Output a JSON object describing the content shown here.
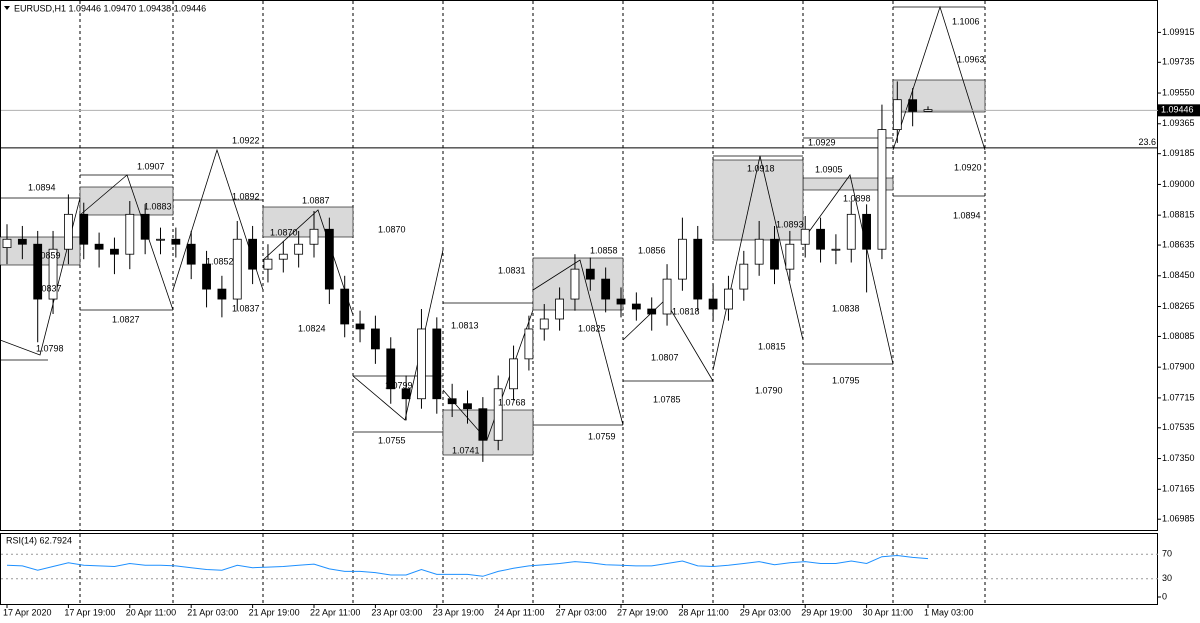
{
  "header": "EURUSD,H1  1.09446 1.09470 1.09438 1.09446",
  "chart_data": {
    "type": "candlestick",
    "categories": [
      "17 Apr 2020",
      null,
      null,
      null,
      "17 Apr 19:00",
      null,
      null,
      null,
      "20 Apr 11:00",
      null,
      null,
      null,
      "21 Apr 03:00",
      null,
      null,
      null,
      "21 Apr 19:00",
      null,
      null,
      null,
      "22 Apr 11:00",
      null,
      null,
      null,
      "23 Apr 03:00",
      null,
      null,
      null,
      "23 Apr 19:00",
      null,
      null,
      null,
      "24 Apr 11:00",
      null,
      null,
      null,
      "27 Apr 03:00",
      null,
      null,
      null,
      "27 Apr 19:00",
      null,
      null,
      null,
      "28 Apr 11:00",
      null,
      null,
      null,
      "29 Apr 03:00",
      null,
      null,
      null,
      "29 Apr 19:00",
      null,
      null,
      null,
      "30 Apr 11:00",
      null,
      null,
      null,
      "1 May 03:00"
    ],
    "open": [
      1.0862,
      1.0867,
      1.0864,
      1.0831,
      1.0861,
      1.0882,
      1.0864,
      1.0861,
      1.0858,
      1.0882,
      1.0867,
      1.0867,
      1.0864,
      1.0852,
      1.0837,
      1.0831,
      1.0867,
      1.0849,
      1.0855,
      1.0858,
      1.0864,
      1.0873,
      1.0837,
      1.0816,
      1.0813,
      1.0801,
      1.0777,
      1.0771,
      1.0813,
      1.0771,
      1.0768,
      1.0765,
      1.0746,
      1.0777,
      1.0795,
      1.0813,
      1.0819,
      1.0831,
      1.0849,
      1.0843,
      1.0831,
      1.0828,
      1.0825,
      1.0822,
      1.0843,
      1.0867,
      1.0831,
      1.0825,
      1.0837,
      1.0852,
      1.0867,
      1.0849,
      1.0864,
      1.0873,
      1.0861,
      1.0861,
      1.0882,
      1.0861,
      1.0933,
      1.0951,
      1.0944
    ],
    "high": [
      1.0876,
      1.0875,
      1.0872,
      1.0872,
      1.0894,
      1.0889,
      1.0871,
      1.0868,
      1.089,
      1.0888,
      1.0874,
      1.0874,
      1.0872,
      1.086,
      1.0845,
      1.0878,
      1.0875,
      1.0864,
      1.0866,
      1.0872,
      1.0884,
      1.088,
      1.0845,
      1.0824,
      1.0821,
      1.0808,
      1.0785,
      1.0825,
      1.082,
      1.078,
      1.0776,
      1.0772,
      1.0785,
      1.0803,
      1.0821,
      1.0828,
      1.0838,
      1.0858,
      1.0856,
      1.085,
      1.0838,
      1.0835,
      1.0832,
      1.0852,
      1.088,
      1.0875,
      1.084,
      1.0845,
      1.086,
      1.0878,
      1.0875,
      1.0872,
      1.0881,
      1.088,
      1.087,
      1.089,
      1.0888,
      1.0948,
      1.0962,
      1.0958,
      1.0947
    ],
    "low": [
      1.0852,
      1.0855,
      1.0805,
      1.0822,
      1.0852,
      1.0855,
      1.085,
      1.0846,
      1.0849,
      1.0858,
      1.0858,
      1.0856,
      1.0843,
      1.0826,
      1.082,
      1.0824,
      1.084,
      1.0841,
      1.0847,
      1.085,
      1.0856,
      1.0828,
      1.0808,
      1.0805,
      1.0792,
      1.0768,
      1.0758,
      1.0765,
      1.0762,
      1.076,
      1.0756,
      1.0733,
      1.074,
      1.077,
      1.0788,
      1.0806,
      1.0812,
      1.0824,
      1.0836,
      1.0823,
      1.082,
      1.0818,
      1.0812,
      1.0815,
      1.0836,
      1.0824,
      1.0818,
      1.0818,
      1.083,
      1.0845,
      1.084,
      1.0842,
      1.0856,
      1.0853,
      1.0852,
      1.0853,
      1.0835,
      1.0855,
      1.0925,
      1.0935,
      1.0944
    ],
    "close": [
      1.0867,
      1.0864,
      1.0831,
      1.0861,
      1.0882,
      1.0864,
      1.0861,
      1.0858,
      1.0882,
      1.0867,
      1.0867,
      1.0864,
      1.0852,
      1.0837,
      1.0831,
      1.0867,
      1.0849,
      1.0855,
      1.0858,
      1.0864,
      1.0873,
      1.0837,
      1.0816,
      1.0813,
      1.0801,
      1.0777,
      1.0771,
      1.0813,
      1.0771,
      1.0768,
      1.0765,
      1.0746,
      1.0777,
      1.0795,
      1.0813,
      1.0819,
      1.0831,
      1.0849,
      1.0843,
      1.0831,
      1.0828,
      1.0825,
      1.0822,
      1.0843,
      1.0867,
      1.0831,
      1.0825,
      1.0837,
      1.0852,
      1.0867,
      1.0849,
      1.0864,
      1.0873,
      1.0861,
      1.0861,
      1.0882,
      1.0861,
      1.0933,
      1.0951,
      1.0944,
      1.0945
    ],
    "ylim": [
      1.0692,
      1.1011
    ],
    "yticks": [
      1.09915,
      1.09735,
      {
        "value": 1.0955,
        "label": "1.09550"
      },
      1.09365,
      1.09185,
      {
        "value": 1.09,
        "label": "1.09000"
      },
      1.08815,
      1.08635,
      {
        "value": 1.0845,
        "label": "1.08450"
      },
      1.08265,
      1.08085,
      {
        "value": 1.079,
        "label": "1.07900"
      },
      1.07715,
      1.07535,
      {
        "value": 1.0735,
        "label": "1.07350"
      },
      1.07165,
      1.06985
    ],
    "current_price": 1.09446,
    "level": {
      "label": 23.6,
      "value": 1.0922
    },
    "annotations": [
      "1.0894",
      "1.0907",
      "1.0883",
      "1.0922",
      "1.0892",
      "1.0887",
      "1.0870",
      "1.0870",
      "1.0852",
      "1.0837",
      "1.0827",
      "1.0824",
      "1.0859",
      "1.0837",
      "1.0798",
      "1.0831",
      "1.0813",
      "1.0799",
      "1.0768",
      "1.0755",
      "1.0741",
      "1.0858",
      "1.0856",
      "1.0825",
      "1.0818",
      "1.0807",
      "1.0785",
      "1.0759",
      "1.0918",
      "1.0893",
      "1.0815",
      "1.0790",
      "1.0929",
      "1.0905",
      "1.0898",
      "1.0838",
      "1.0795",
      "1.1006",
      "1.0963",
      "1.0920",
      "1.0894"
    ],
    "rsi": {
      "label": "RSI(14) 62.7924",
      "color": "#1e90ff",
      "ylim": [
        0,
        100
      ],
      "yticks": [
        70,
        30,
        0
      ],
      "values": [
        52,
        51,
        44,
        50,
        56,
        52,
        51,
        50,
        55,
        52,
        52,
        51,
        48,
        45,
        44,
        52,
        48,
        49,
        50,
        52,
        54,
        46,
        42,
        42,
        40,
        36,
        36,
        45,
        37,
        37,
        37,
        34,
        42,
        47,
        51,
        53,
        55,
        58,
        56,
        53,
        52,
        51,
        51,
        55,
        59,
        51,
        50,
        52,
        55,
        58,
        53,
        56,
        58,
        55,
        55,
        59,
        55,
        66,
        68,
        65,
        63
      ]
    }
  }
}
